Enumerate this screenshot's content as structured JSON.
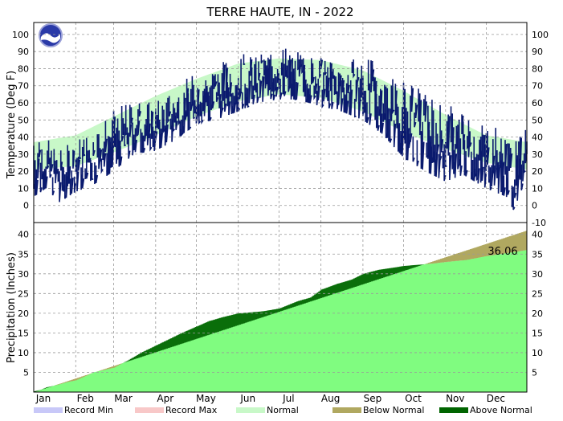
{
  "chart_data": {
    "type": "line",
    "title": "TERRE HAUTE, IN - 2022",
    "months": [
      "Jan",
      "Feb",
      "Mar",
      "Apr",
      "May",
      "Jun",
      "Jul",
      "Aug",
      "Sep",
      "Oct",
      "Nov",
      "Dec"
    ],
    "temperature": {
      "ylabel": "Temperature (Deg F)",
      "ylim": [
        -10,
        107
      ],
      "ticks": [
        0,
        10,
        20,
        30,
        40,
        50,
        60,
        70,
        80,
        90,
        100
      ],
      "right_ticks": [
        -10,
        0,
        10,
        20,
        30,
        40,
        50,
        60,
        70,
        80,
        90,
        100
      ],
      "normal_band": {
        "day": [
          1,
          32,
          60,
          91,
          121,
          152,
          182,
          213,
          244,
          274,
          305,
          335,
          365
        ],
        "high": [
          37,
          41,
          52,
          64,
          74,
          83,
          86,
          85,
          79,
          67,
          53,
          41,
          37
        ],
        "low": [
          21,
          23,
          31,
          41,
          52,
          61,
          65,
          63,
          55,
          43,
          33,
          25,
          21
        ]
      },
      "daily_range": {
        "day": [
          1,
          10,
          20,
          32,
          45,
          60,
          75,
          91,
          105,
          121,
          135,
          152,
          165,
          182,
          195,
          213,
          228,
          244,
          258,
          274,
          290,
          305,
          318,
          335,
          350,
          358,
          365
        ],
        "high": [
          60,
          45,
          38,
          45,
          52,
          62,
          68,
          66,
          74,
          84,
          88,
          95,
          92,
          102,
          95,
          92,
          88,
          95,
          88,
          82,
          75,
          68,
          62,
          58,
          50,
          45,
          58
        ],
        "low": [
          5,
          10,
          2,
          8,
          12,
          20,
          30,
          32,
          38,
          48,
          50,
          55,
          60,
          62,
          62,
          58,
          55,
          50,
          42,
          28,
          20,
          14,
          18,
          10,
          5,
          -7,
          30
        ]
      }
    },
    "precipitation": {
      "ylabel": "Precipitation (Inches)",
      "ylim": [
        0,
        43
      ],
      "ticks": [
        5,
        10,
        15,
        20,
        25,
        30,
        35,
        40
      ],
      "normal_total": 41.0,
      "ytd_total": "36.06",
      "cumulative": {
        "day": [
          1,
          6,
          10,
          18,
          25,
          32,
          45,
          55,
          60,
          70,
          80,
          95,
          110,
          120,
          130,
          140,
          152,
          160,
          170,
          182,
          195,
          205,
          213,
          225,
          235,
          244,
          255,
          265,
          274,
          285,
          295,
          305,
          320,
          335,
          345,
          355,
          365
        ],
        "value": [
          0.2,
          0.6,
          1.2,
          1.8,
          2.5,
          3.0,
          5.0,
          5.8,
          6.2,
          8.0,
          10.0,
          12.5,
          15.0,
          16.5,
          18.0,
          19.0,
          20.0,
          20.2,
          20.5,
          21.2,
          23.0,
          24.0,
          26.0,
          27.5,
          28.5,
          30.0,
          31.0,
          31.5,
          32.0,
          32.3,
          32.6,
          33.0,
          33.5,
          34.5,
          35.0,
          35.5,
          36.06
        ]
      }
    },
    "legend": [
      {
        "label": "Record Min",
        "color": "#c8c8f8"
      },
      {
        "label": "Record Max",
        "color": "#f8c8c8"
      },
      {
        "label": "Normal",
        "color": "#c8f8c8"
      },
      {
        "label": "Below Normal",
        "color": "#b0a860"
      },
      {
        "label": "Above Normal",
        "color": "#006400"
      }
    ],
    "colors": {
      "temp_line": "#0a1a6e",
      "normal_band": "#c8f8c8",
      "precip_fill": "#80fc80",
      "below_normal": "#b0a860",
      "above_normal": "#0a6e0a",
      "grid": "#999999"
    },
    "grid": true,
    "legend_placement": "bottom"
  }
}
